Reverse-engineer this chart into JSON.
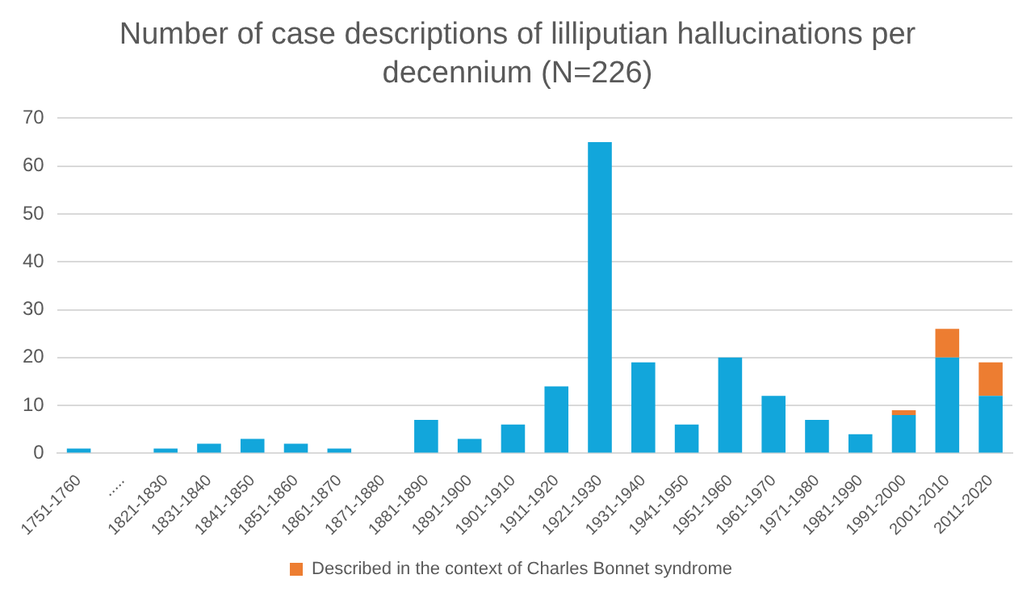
{
  "chart_data": {
    "type": "bar",
    "title": "Number of case descriptions of lilliputian hallucinations per decennium (N=226)",
    "categories": [
      "1751-1760",
      ".....",
      "1821-1830",
      "1831-1840",
      "1841-1850",
      "1851-1860",
      "1861-1870",
      "1871-1880",
      "1881-1890",
      "1891-1900",
      "1901-1910",
      "1911-1920",
      "1921-1930",
      "1931-1940",
      "1941-1950",
      "1951-1960",
      "1961-1970",
      "1971-1980",
      "1981-1990",
      "1991-2000",
      "2001-2010",
      "2011-2020"
    ],
    "series": [
      {
        "color": "#12a6db",
        "values": [
          1,
          0,
          1,
          2,
          3,
          2,
          1,
          0,
          7,
          3,
          6,
          14,
          65,
          19,
          6,
          20,
          12,
          7,
          4,
          8,
          20,
          12
        ]
      },
      {
        "name": "Described in the context of Charles Bonnet syndrome",
        "color": "#ed7d31",
        "values": [
          0,
          0,
          0,
          0,
          0,
          0,
          0,
          0,
          0,
          0,
          0,
          0,
          0,
          0,
          0,
          0,
          0,
          0,
          0,
          1,
          6,
          7
        ]
      }
    ],
    "stacked": true,
    "ylim": [
      0,
      70
    ],
    "yticks": [
      0,
      10,
      20,
      30,
      40,
      50,
      60,
      70
    ],
    "grid": "y",
    "legend": "bottom"
  }
}
